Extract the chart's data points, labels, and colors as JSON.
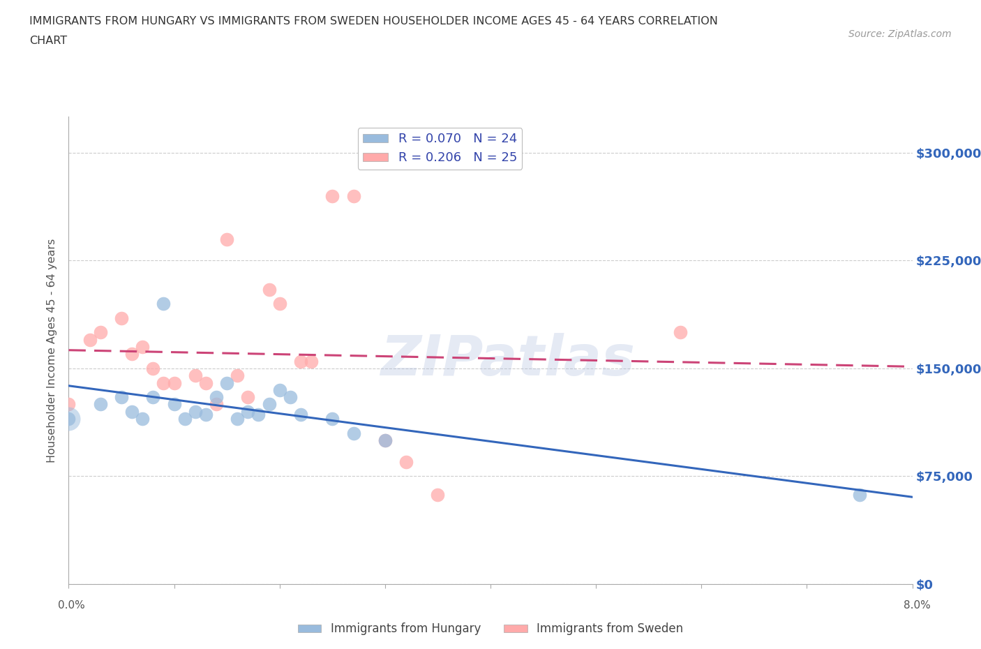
{
  "title_line1": "IMMIGRANTS FROM HUNGARY VS IMMIGRANTS FROM SWEDEN HOUSEHOLDER INCOME AGES 45 - 64 YEARS CORRELATION",
  "title_line2": "CHART",
  "source_text": "Source: ZipAtlas.com",
  "ylabel": "Householder Income Ages 45 - 64 years",
  "xlim": [
    0.0,
    0.08
  ],
  "ylim": [
    0,
    325000
  ],
  "yticks": [
    0,
    75000,
    150000,
    225000,
    300000
  ],
  "xticks": [
    0.0,
    0.01,
    0.02,
    0.03,
    0.04,
    0.05,
    0.06,
    0.07,
    0.08
  ],
  "ytick_labels": [
    "$0",
    "$75,000",
    "$150,000",
    "$225,000",
    "$300,000"
  ],
  "color_hungary": "#99BBDD",
  "color_sweden": "#FFAAAA",
  "line_color_hungary": "#3366BB",
  "line_color_sweden": "#CC4477",
  "R_hungary": 0.07,
  "N_hungary": 24,
  "R_sweden": 0.206,
  "N_sweden": 25,
  "hungary_x": [
    0.0,
    0.003,
    0.005,
    0.006,
    0.007,
    0.008,
    0.009,
    0.01,
    0.011,
    0.012,
    0.013,
    0.014,
    0.015,
    0.016,
    0.017,
    0.018,
    0.019,
    0.02,
    0.021,
    0.022,
    0.025,
    0.027,
    0.03,
    0.075
  ],
  "hungary_y": [
    115000,
    125000,
    130000,
    120000,
    115000,
    130000,
    195000,
    125000,
    115000,
    120000,
    118000,
    130000,
    140000,
    115000,
    120000,
    118000,
    125000,
    135000,
    130000,
    118000,
    115000,
    105000,
    100000,
    62000
  ],
  "sweden_x": [
    0.0,
    0.002,
    0.003,
    0.005,
    0.006,
    0.007,
    0.008,
    0.009,
    0.01,
    0.012,
    0.013,
    0.014,
    0.015,
    0.016,
    0.017,
    0.019,
    0.02,
    0.022,
    0.023,
    0.025,
    0.027,
    0.03,
    0.032,
    0.035,
    0.058
  ],
  "sweden_y": [
    125000,
    170000,
    175000,
    185000,
    160000,
    165000,
    150000,
    140000,
    140000,
    145000,
    140000,
    125000,
    240000,
    145000,
    130000,
    205000,
    195000,
    155000,
    155000,
    270000,
    270000,
    100000,
    85000,
    62000,
    175000
  ],
  "background_color": "#FFFFFF",
  "grid_color": "#CCCCCC",
  "title_color": "#333333",
  "axis_label_color": "#555555",
  "right_tick_color": "#3366BB",
  "watermark_text": "ZIPatlas",
  "watermark_color": "#AABBDD",
  "legend_label_color": "#3344AA"
}
